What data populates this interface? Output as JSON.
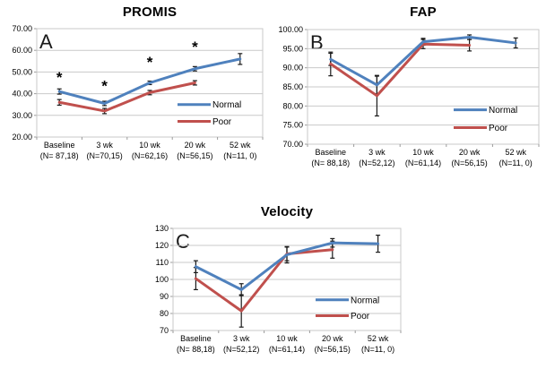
{
  "figure": {
    "description": "Three-panel line chart figure with error bars comparing Normal vs Poor groups over time",
    "panel_count": 3
  },
  "chart_data": [
    {
      "panel_label": "A",
      "title": "PROMIS",
      "type": "line",
      "ylim": [
        20,
        70
      ],
      "ytick_step": 10,
      "ytick_decimals": 2,
      "grid": true,
      "legend_position": "inside-right-bottom",
      "categories": [
        {
          "label": "Baseline",
          "n_label": "(N= 87,18)"
        },
        {
          "label": "3 wk",
          "n_label": "(N=70,15)"
        },
        {
          "label": "10 wk",
          "n_label": "(N=62,16)"
        },
        {
          "label": "20 wk",
          "n_label": "(N=56,15)"
        },
        {
          "label": "52 wk",
          "n_label": "(N=11, 0)"
        }
      ],
      "series": [
        {
          "name": "Normal",
          "color": "#4F81BD",
          "values": [
            41,
            35.5,
            45,
            51.5,
            56
          ],
          "errors": [
            1.2,
            1,
            0.8,
            1,
            2.5
          ]
        },
        {
          "name": "Poor",
          "color": "#C0504D",
          "values": [
            36,
            32,
            40.5,
            45,
            null
          ],
          "errors": [
            1.3,
            1.2,
            1,
            1,
            null
          ]
        }
      ],
      "asterisk_symbol": "*",
      "asterisks": [
        {
          "category_index": 0,
          "y": 49
        },
        {
          "category_index": 1,
          "y": 45
        },
        {
          "category_index": 2,
          "y": 56
        },
        {
          "category_index": 3,
          "y": 63
        }
      ]
    },
    {
      "panel_label": "B",
      "title": "FAP",
      "type": "line",
      "ylim": [
        70,
        100
      ],
      "ytick_step": 5,
      "ytick_decimals": 2,
      "grid": true,
      "legend_position": "inside-right-bottom",
      "categories": [
        {
          "label": "Baseline",
          "n_label": "(N= 88,18)"
        },
        {
          "label": "3 wk",
          "n_label": "(N=52,12)"
        },
        {
          "label": "10 wk",
          "n_label": "(N=61,14)"
        },
        {
          "label": "20 wk",
          "n_label": "(N=56,15)"
        },
        {
          "label": "52 wk",
          "n_label": "(N=11, 0)"
        }
      ],
      "series": [
        {
          "name": "Normal",
          "color": "#4F81BD",
          "values": [
            92.2,
            85.5,
            96.8,
            98,
            96.5
          ],
          "errors": [
            1.6,
            2.3,
            0.9,
            0.6,
            1.3
          ]
        },
        {
          "name": "Poor",
          "color": "#C0504D",
          "values": [
            91,
            82.7,
            96.2,
            95.9,
            null
          ],
          "errors": [
            3.1,
            5.3,
            1.2,
            1.5,
            null
          ]
        }
      ],
      "asterisk_symbol": "*",
      "asterisks": []
    },
    {
      "panel_label": "C",
      "title": "Velocity",
      "type": "line",
      "ylim": [
        70,
        130
      ],
      "ytick_step": 10,
      "ytick_decimals": 0,
      "grid": true,
      "legend_position": "inside-right-bottom",
      "categories": [
        {
          "label": "Baseline",
          "n_label": "(N= 88,18)"
        },
        {
          "label": "3 wk",
          "n_label": "(N=52,12)"
        },
        {
          "label": "10 wk",
          "n_label": "(N=61,14)"
        },
        {
          "label": "20 wk",
          "n_label": "(N=56,15)"
        },
        {
          "label": "52 wk",
          "n_label": "(N=11, 0)"
        }
      ],
      "series": [
        {
          "name": "Normal",
          "color": "#4F81BD",
          "values": [
            107.5,
            94,
            114.5,
            121.5,
            121
          ],
          "errors": [
            3.5,
            3.5,
            4.8,
            2.5,
            5
          ]
        },
        {
          "name": "Poor",
          "color": "#C0504D",
          "values": [
            100.5,
            81.5,
            115,
            117.5,
            null
          ],
          "errors": [
            6.5,
            9.5,
            4,
            5,
            null
          ]
        }
      ],
      "asterisk_symbol": "*",
      "asterisks": []
    }
  ]
}
